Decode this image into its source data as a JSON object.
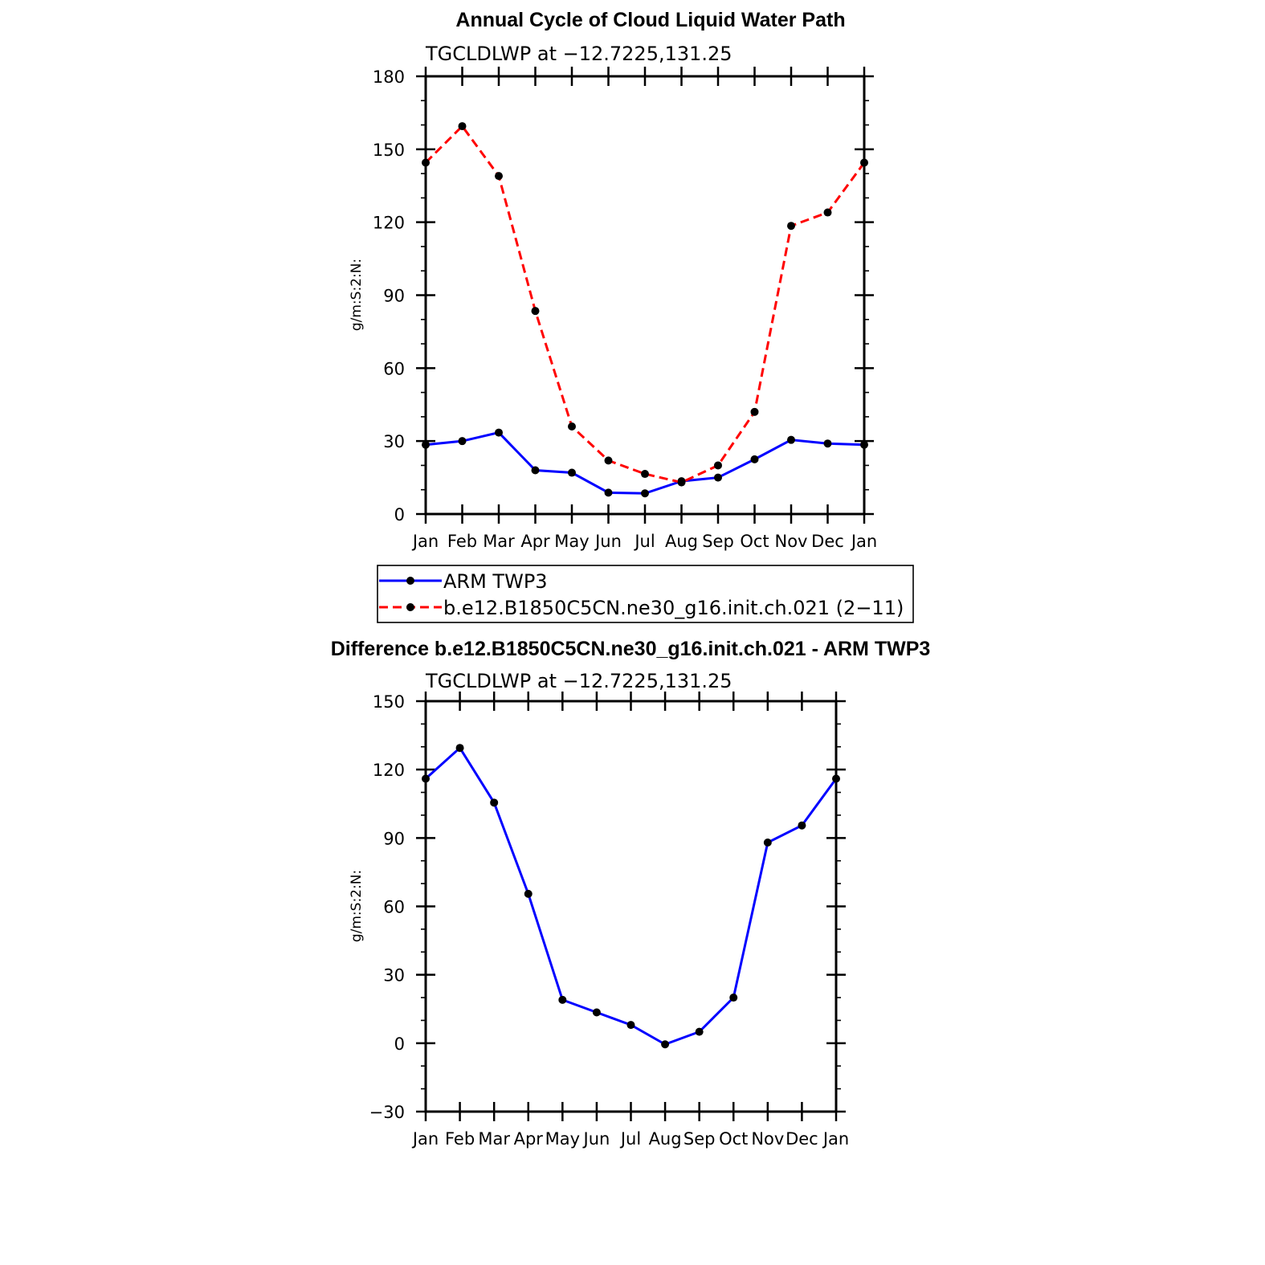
{
  "chart_data": [
    {
      "type": "line",
      "title": "Annual Cycle of Cloud Liquid Water Path",
      "subtitle": "TGCLDLWP at −12.7225,131.25",
      "ylabel": "g/m:S:2:N:",
      "xlabel": "",
      "categories": [
        "Jan",
        "Feb",
        "Mar",
        "Apr",
        "May",
        "Jun",
        "Jul",
        "Aug",
        "Sep",
        "Oct",
        "Nov",
        "Dec",
        "Jan"
      ],
      "ylim": [
        0,
        180
      ],
      "yticks": [
        0,
        30,
        60,
        90,
        120,
        150,
        180
      ],
      "yticklabels": [
        "0",
        "30",
        "60",
        "90",
        "120",
        "150",
        "180"
      ],
      "series": [
        {
          "name": "ARM TWP3",
          "color": "#0000ff",
          "dash": "solid",
          "values": [
            28.5,
            30,
            33.5,
            18,
            17,
            8.8,
            8.5,
            13.5,
            15,
            22.5,
            30.5,
            29,
            28.5
          ]
        },
        {
          "name": "b.e12.B1850C5CN.ne30_g16.init.ch.021 (2−11)",
          "color": "#ff0000",
          "dash": "dashed",
          "values": [
            144.5,
            159.5,
            139,
            83.5,
            36,
            22,
            16.5,
            13,
            20,
            42,
            118.5,
            124,
            144.5
          ]
        }
      ],
      "legend": "below"
    },
    {
      "type": "line",
      "title": "Difference b.e12.B1850C5CN.ne30_g16.init.ch.021 - ARM TWP3",
      "subtitle": "TGCLDLWP at −12.7225,131.25",
      "ylabel": "g/m:S:2:N:",
      "xlabel": "",
      "categories": [
        "Jan",
        "Feb",
        "Mar",
        "Apr",
        "May",
        "Jun",
        "Jul",
        "Aug",
        "Sep",
        "Oct",
        "Nov",
        "Dec",
        "Jan"
      ],
      "ylim": [
        -30,
        150
      ],
      "yticks": [
        -30,
        0,
        30,
        60,
        90,
        120,
        150
      ],
      "yticklabels": [
        "−30",
        "0",
        "30",
        "60",
        "90",
        "120",
        "150"
      ],
      "series": [
        {
          "name": "Difference",
          "color": "#0000ff",
          "dash": "solid",
          "values": [
            116,
            129.5,
            105.5,
            65.5,
            19,
            13.5,
            8,
            -0.5,
            5,
            20,
            88,
            95.5,
            116
          ]
        }
      ]
    }
  ]
}
